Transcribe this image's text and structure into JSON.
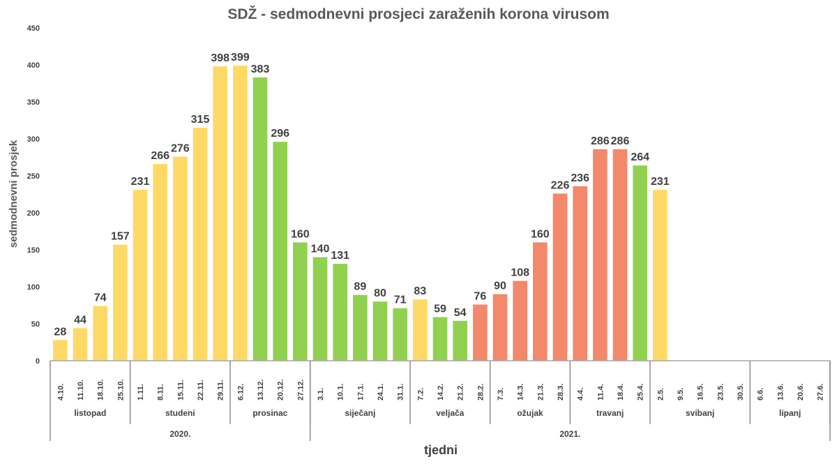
{
  "chart_data": {
    "type": "bar",
    "title": "SDŽ - sedmodnevni prosjeci zaraženih korona virusom",
    "xlabel": "tjedni",
    "ylabel": "sedmodnevni prosjek",
    "ylim": [
      0,
      450
    ],
    "yticks": [
      "0",
      "50",
      "100",
      "150",
      "200",
      "250",
      "300",
      "350",
      "400",
      "450"
    ],
    "grid": false,
    "categories": [
      "4.10.",
      "11.10.",
      "18.10.",
      "25.10.",
      "1.11.",
      "8.11.",
      "15.11.",
      "22.11.",
      "29.11.",
      "6.12.",
      "13.12.",
      "20.12.",
      "27.12.",
      "3.1.",
      "10.1.",
      "17.1.",
      "24.1.",
      "31.1.",
      "7.2.",
      "14.2.",
      "21.2.",
      "28.2.",
      "7.3.",
      "14.3.",
      "21.3.",
      "28.3.",
      "4.4.",
      "11.4.",
      "18.4.",
      "25.4.",
      "2.5.",
      "9.5.",
      "16.5.",
      "23.5.",
      "30.5.",
      "6.6.",
      "13.6.",
      "20.6.",
      "27.6."
    ],
    "values": [
      28,
      44,
      74,
      157,
      231,
      266,
      276,
      315,
      398,
      399,
      383,
      296,
      160,
      140,
      131,
      89,
      80,
      71,
      83,
      59,
      54,
      76,
      90,
      108,
      160,
      226,
      236,
      286,
      286,
      264,
      231,
      null,
      null,
      null,
      null,
      null,
      null,
      null,
      null
    ],
    "bar_colors": [
      "y",
      "y",
      "y",
      "y",
      "y",
      "y",
      "y",
      "y",
      "y",
      "y",
      "g",
      "g",
      "g",
      "g",
      "g",
      "g",
      "g",
      "g",
      "y",
      "g",
      "g",
      "r",
      "r",
      "r",
      "r",
      "r",
      "r",
      "r",
      "r",
      "g",
      "y"
    ],
    "palette": {
      "y": "#FFD966",
      "g": "#92D050",
      "r": "#F4886A"
    },
    "months": [
      {
        "label": "listopad",
        "weeks": 4
      },
      {
        "label": "studeni",
        "weeks": 5
      },
      {
        "label": "prosinac",
        "weeks": 4
      },
      {
        "label": "siječanj",
        "weeks": 5
      },
      {
        "label": "veljača",
        "weeks": 4
      },
      {
        "label": "ožujak",
        "weeks": 4
      },
      {
        "label": "travanj",
        "weeks": 4
      },
      {
        "label": "svibanj",
        "weeks": 5
      },
      {
        "label": "lipanj",
        "weeks": 4
      }
    ],
    "years": [
      {
        "label": "2020.",
        "weeks": 13
      },
      {
        "label": "2021.",
        "weeks": 26
      }
    ]
  }
}
